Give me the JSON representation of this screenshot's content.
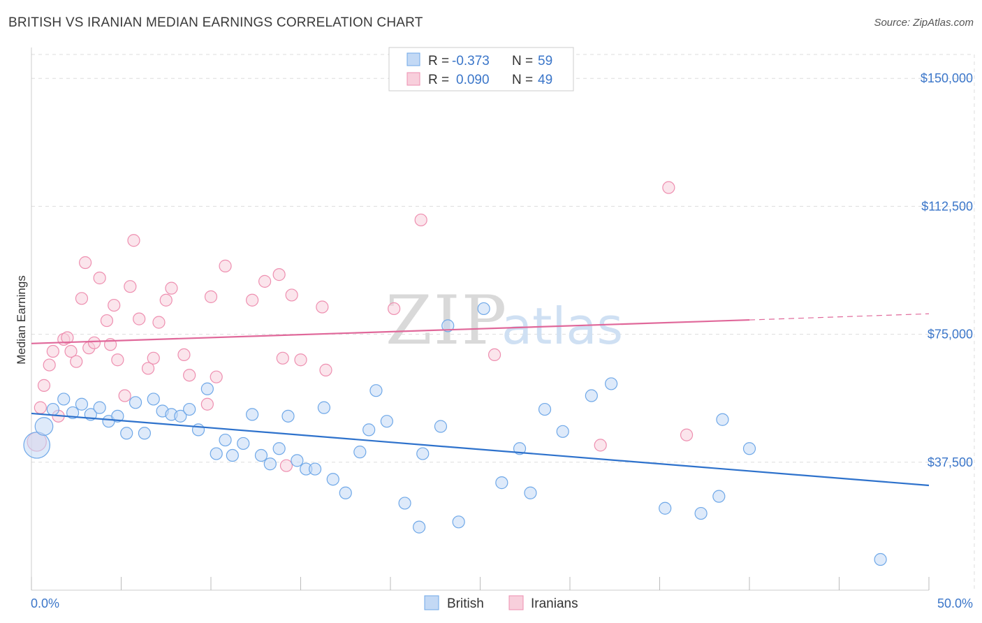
{
  "title": "BRITISH VS IRANIAN MEDIAN EARNINGS CORRELATION CHART",
  "source": "Source: ZipAtlas.com",
  "watermark": {
    "zip": "ZIP",
    "atlas": "atlas"
  },
  "colors": {
    "british": "#6fa8e8",
    "british_fill": "#c3d9f5",
    "british_line": "#2e72cc",
    "iranians": "#ee8fb0",
    "iranians_fill": "#f8cfdc",
    "iranians_line": "#e0689a",
    "tick_label": "#3b76c9",
    "grid": "#dddddd"
  },
  "legend": {
    "items": [
      {
        "r_label": "R =",
        "r_value": "-0.373",
        "n_label": "N =",
        "n_value": "59"
      },
      {
        "r_label": "R =",
        "r_value": "0.090",
        "n_label": "N =",
        "n_value": "49"
      }
    ]
  },
  "bottom_legend": [
    "British",
    "Iranians"
  ],
  "chart_data": {
    "type": "scatter",
    "title": "BRITISH VS IRANIAN MEDIAN EARNINGS CORRELATION CHART",
    "xlabel": "",
    "ylabel": "Median Earnings",
    "xlim": [
      0,
      50
    ],
    "ylim": [
      0,
      157000
    ],
    "x_tick_labels": [
      "0.0%",
      "50.0%"
    ],
    "y_ticks": [
      37500,
      75000,
      112500,
      150000
    ],
    "y_tick_labels": [
      "$37,500",
      "$75,000",
      "$112,500",
      "$150,000"
    ],
    "grid": true,
    "legend_position": "top-center",
    "series": [
      {
        "name": "British",
        "r": -0.373,
        "n": 59,
        "trend": {
          "x": [
            0,
            50
          ],
          "y": [
            51800,
            30700
          ]
        },
        "points": [
          [
            0.3,
            42500,
            2.2
          ],
          [
            0.7,
            48000,
            1.5
          ],
          [
            1.2,
            53000,
            1
          ],
          [
            1.8,
            56000,
            1
          ],
          [
            2.3,
            52000,
            1
          ],
          [
            2.8,
            54500,
            1
          ],
          [
            3.3,
            51500,
            1
          ],
          [
            3.8,
            53500,
            1
          ],
          [
            4.3,
            49500,
            1
          ],
          [
            4.8,
            51000,
            1
          ],
          [
            5.3,
            46000,
            1
          ],
          [
            5.8,
            55000,
            1
          ],
          [
            6.3,
            46000,
            1
          ],
          [
            6.8,
            56000,
            1
          ],
          [
            7.3,
            52500,
            1
          ],
          [
            7.8,
            51500,
            1
          ],
          [
            8.3,
            51000,
            1
          ],
          [
            8.8,
            53000,
            1
          ],
          [
            9.3,
            47000,
            1
          ],
          [
            9.8,
            59000,
            1
          ],
          [
            10.3,
            40000,
            1
          ],
          [
            10.8,
            44000,
            1
          ],
          [
            11.2,
            39500,
            1
          ],
          [
            11.8,
            43000,
            1
          ],
          [
            12.3,
            51500,
            1
          ],
          [
            12.8,
            39500,
            1
          ],
          [
            13.3,
            37000,
            1
          ],
          [
            13.8,
            41500,
            1
          ],
          [
            14.3,
            51000,
            1
          ],
          [
            14.8,
            38000,
            1
          ],
          [
            15.3,
            35500,
            1
          ],
          [
            15.8,
            35500,
            1
          ],
          [
            16.3,
            53500,
            1
          ],
          [
            16.8,
            32500,
            1
          ],
          [
            17.5,
            28500,
            1
          ],
          [
            18.3,
            40500,
            1
          ],
          [
            18.8,
            47000,
            1
          ],
          [
            19.2,
            58500,
            1
          ],
          [
            19.8,
            49500,
            1
          ],
          [
            20.8,
            25500,
            1
          ],
          [
            21.6,
            18500,
            1
          ],
          [
            21.8,
            40000,
            1
          ],
          [
            22.8,
            48000,
            1
          ],
          [
            23.2,
            77500,
            1
          ],
          [
            23.8,
            20000,
            1
          ],
          [
            25.2,
            82500,
            1
          ],
          [
            26.2,
            31500,
            1
          ],
          [
            27.2,
            41500,
            1
          ],
          [
            27.8,
            28500,
            1
          ],
          [
            28.6,
            53000,
            1
          ],
          [
            29.6,
            46500,
            1
          ],
          [
            31.2,
            57000,
            1
          ],
          [
            32.3,
            60500,
            1
          ],
          [
            35.3,
            24000,
            1
          ],
          [
            37.3,
            22500,
            1
          ],
          [
            38.3,
            27500,
            1
          ],
          [
            38.5,
            50000,
            1
          ],
          [
            40.0,
            41500,
            1
          ],
          [
            47.3,
            9000,
            1
          ]
        ]
      },
      {
        "name": "Iranians",
        "r": 0.09,
        "n": 49,
        "trend": {
          "x": [
            0,
            40
          ],
          "y": [
            72300,
            79200
          ]
        },
        "trend_dashed": {
          "x": [
            40,
            50
          ],
          "y": [
            79200,
            81000
          ]
        },
        "points": [
          [
            0.3,
            43500,
            1.6
          ],
          [
            0.5,
            53500,
            1
          ],
          [
            0.7,
            60000,
            1
          ],
          [
            1.0,
            66000,
            1
          ],
          [
            1.2,
            70000,
            1
          ],
          [
            1.5,
            51000,
            1
          ],
          [
            1.8,
            73500,
            1
          ],
          [
            2.0,
            74000,
            1
          ],
          [
            2.2,
            70000,
            1
          ],
          [
            2.5,
            67000,
            1
          ],
          [
            2.8,
            85500,
            1
          ],
          [
            3.0,
            96000,
            1
          ],
          [
            3.2,
            71000,
            1
          ],
          [
            3.5,
            72500,
            1
          ],
          [
            3.8,
            91500,
            1
          ],
          [
            4.2,
            79000,
            1
          ],
          [
            4.4,
            72000,
            1
          ],
          [
            4.6,
            83500,
            1
          ],
          [
            4.8,
            67500,
            1
          ],
          [
            5.2,
            57000,
            1
          ],
          [
            5.5,
            89000,
            1
          ],
          [
            5.7,
            102500,
            1
          ],
          [
            6.0,
            79500,
            1
          ],
          [
            6.5,
            65000,
            1
          ],
          [
            6.8,
            68000,
            1
          ],
          [
            7.1,
            78500,
            1
          ],
          [
            7.5,
            85000,
            1
          ],
          [
            7.8,
            88500,
            1
          ],
          [
            8.5,
            69000,
            1
          ],
          [
            8.8,
            63000,
            1
          ],
          [
            9.8,
            54500,
            1
          ],
          [
            10.0,
            86000,
            1
          ],
          [
            10.3,
            62500,
            1
          ],
          [
            10.8,
            95000,
            1
          ],
          [
            12.3,
            85000,
            1
          ],
          [
            13.0,
            90500,
            1
          ],
          [
            13.8,
            92500,
            1
          ],
          [
            14.0,
            68000,
            1
          ],
          [
            14.2,
            36500,
            1
          ],
          [
            14.5,
            86500,
            1
          ],
          [
            15.0,
            67500,
            1
          ],
          [
            16.2,
            83000,
            1
          ],
          [
            16.4,
            64500,
            1
          ],
          [
            20.2,
            82500,
            1
          ],
          [
            21.7,
            108500,
            1
          ],
          [
            25.8,
            69000,
            1
          ],
          [
            31.7,
            42500,
            1
          ],
          [
            35.5,
            118000,
            1
          ],
          [
            36.5,
            45500,
            1
          ]
        ]
      }
    ]
  }
}
